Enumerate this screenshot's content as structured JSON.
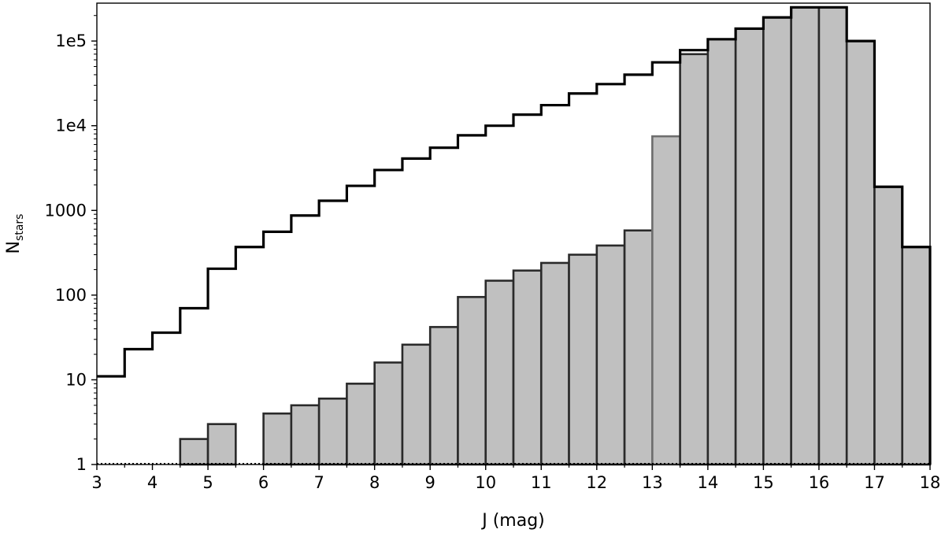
{
  "chart_data": {
    "type": "bar",
    "xlabel": "J (mag)",
    "ylabel_main": "N",
    "ylabel_sub": "stars",
    "xlim": [
      3,
      18
    ],
    "ylim": [
      1,
      280000
    ],
    "yscale": "log",
    "bin_width": 0.5,
    "grid": false,
    "x_ticks": [
      "3",
      "4",
      "5",
      "6",
      "7",
      "8",
      "9",
      "10",
      "11",
      "12",
      "13",
      "14",
      "15",
      "16",
      "17",
      "18"
    ],
    "y_ticks": [
      {
        "value": 1,
        "label": "1"
      },
      {
        "value": 10,
        "label": "10"
      },
      {
        "value": 100,
        "label": "100"
      },
      {
        "value": 1000,
        "label": "1000"
      },
      {
        "value": 10000,
        "label": "1e4"
      },
      {
        "value": 100000,
        "label": "1e5"
      }
    ],
    "series": [
      {
        "style": "filled-bars",
        "fill": "#c0c0c0",
        "edge_light": "#6e6e6e",
        "edge_dark": "#2a2a2a",
        "bins_left": [
          4.5,
          5.0,
          6.0,
          6.5,
          7.0,
          7.5,
          8.0,
          8.5,
          9.0,
          9.5,
          10.0,
          10.5,
          11.0,
          11.5,
          12.0,
          12.5,
          13.0,
          13.5,
          14.0,
          14.5,
          15.0,
          15.5,
          16.0,
          16.5,
          17.0,
          17.5
        ],
        "values": [
          2,
          3,
          4,
          5,
          6,
          9,
          16,
          26,
          42,
          95,
          148,
          195,
          240,
          300,
          385,
          580,
          7500,
          70000,
          105000,
          140000,
          190000,
          250000,
          250000,
          100000,
          1900,
          370
        ]
      },
      {
        "style": "step-outline",
        "stroke": "#000000",
        "bins_left": [
          3.0,
          3.5,
          4.0,
          4.5,
          5.0,
          5.5,
          6.0,
          6.5,
          7.0,
          7.5,
          8.0,
          8.5,
          9.0,
          9.5,
          10.0,
          10.5,
          11.0,
          11.5,
          12.0,
          12.5,
          13.0,
          13.5,
          14.0,
          14.5,
          15.0,
          15.5,
          16.0,
          16.5,
          17.0,
          17.5
        ],
        "values": [
          11,
          23,
          36,
          70,
          205,
          370,
          560,
          870,
          1300,
          1950,
          3000,
          4100,
          5500,
          7700,
          10000,
          13500,
          17500,
          24000,
          31000,
          40000,
          56000,
          78000,
          105000,
          140000,
          190000,
          250000,
          250000,
          100000,
          1900,
          370
        ]
      }
    ]
  }
}
